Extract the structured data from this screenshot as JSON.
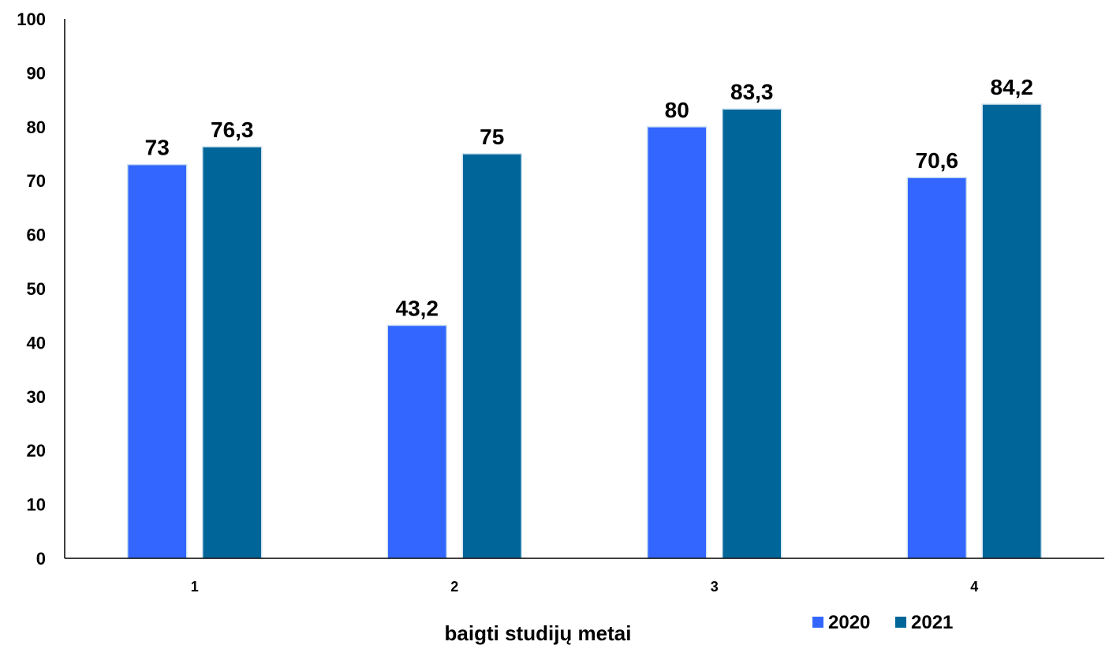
{
  "chart_data": {
    "type": "bar",
    "title": "",
    "xlabel": "baigti studijų metai",
    "ylabel": "",
    "ylim": [
      0,
      100
    ],
    "yticks": [
      "0",
      "10",
      "20",
      "30",
      "40",
      "50",
      "60",
      "70",
      "80",
      "90",
      "100"
    ],
    "grid": false,
    "legend_position": "bottom-right",
    "categories": [
      "1",
      "2",
      "3",
      "4"
    ],
    "series": [
      {
        "name": "2020",
        "color": "#3366FF",
        "values": [
          73,
          43.2,
          80,
          70.6
        ],
        "labels": [
          "73",
          "43,2",
          "80",
          "70,6"
        ]
      },
      {
        "name": "2021",
        "color": "#006699",
        "values": [
          76.3,
          75,
          83.3,
          84.2
        ],
        "labels": [
          "76,3",
          "75",
          "83,3",
          "84,2"
        ]
      }
    ]
  }
}
